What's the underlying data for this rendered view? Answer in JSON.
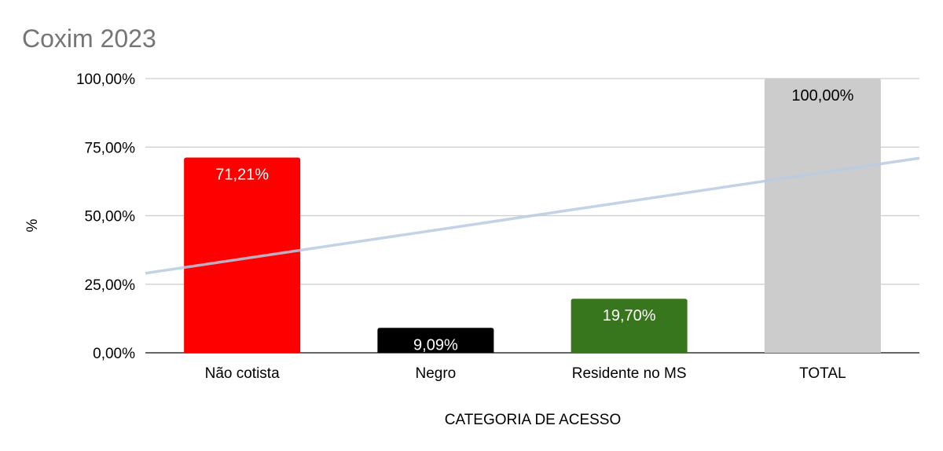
{
  "chart_data": {
    "type": "bar",
    "title": "Coxim 2023",
    "xlabel": "CATEGORIA DE ACESSO",
    "ylabel": "%",
    "categories": [
      "Não cotista",
      "Negro",
      "Residente no MS",
      "TOTAL"
    ],
    "values": [
      71.21,
      9.09,
      19.7,
      100.0
    ],
    "data_labels": [
      "71,21%",
      "9,09%",
      "19,70%",
      "100,00%"
    ],
    "colors": [
      "#ff0000",
      "#000000",
      "#38761d",
      "#cccccc"
    ],
    "label_colors": [
      "#ffffff",
      "#ffffff",
      "#ffffff",
      "#000000"
    ],
    "ylim": [
      0,
      100
    ],
    "yticks": [
      0,
      25,
      50,
      75,
      100
    ],
    "ytick_labels": [
      "0,00%",
      "25,00%",
      "50,00%",
      "75,00%",
      "100,00%"
    ],
    "grid": true,
    "legend": "none",
    "trendline": {
      "type": "linear",
      "color": "#b7cbe0",
      "start_value": 29,
      "end_value": 71
    }
  }
}
